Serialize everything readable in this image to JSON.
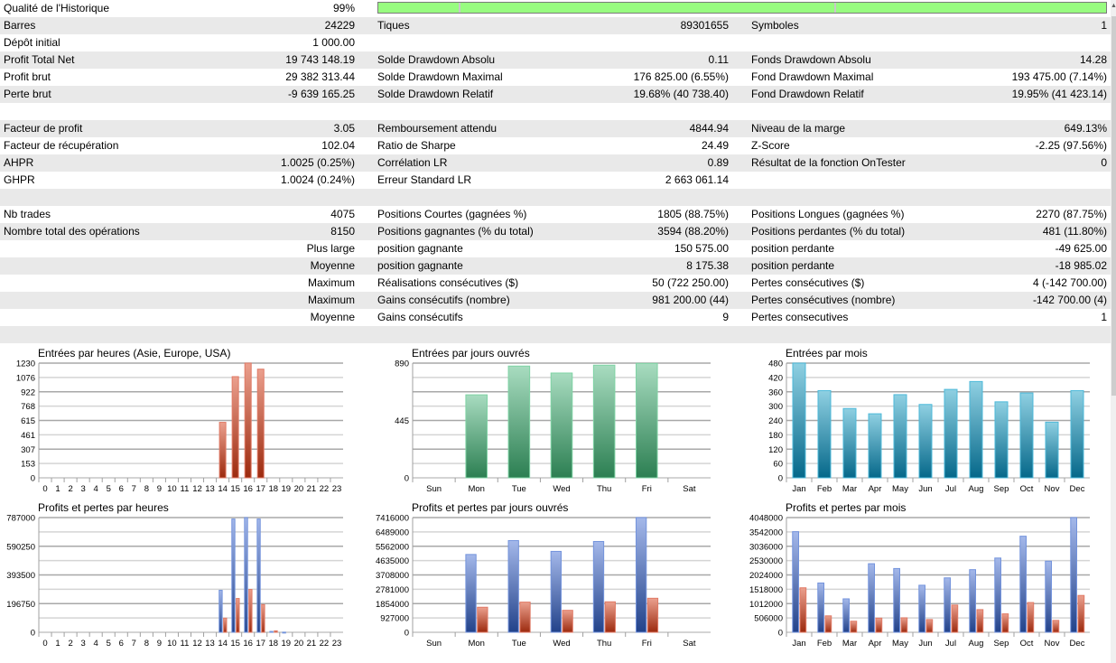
{
  "quality": {
    "label": "Qualité de l'Historique",
    "value": "99%",
    "percent": 99
  },
  "rows": [
    [
      "Barres",
      "24229",
      "Tiques",
      "89301655",
      "Symboles",
      "1"
    ],
    [
      "Dépôt initial",
      "1 000.00",
      "",
      "",
      "",
      ""
    ],
    [
      "Profit Total Net",
      "19 743 148.19",
      "Solde Drawdown Absolu",
      "0.11",
      "Fonds Drawdown Absolu",
      "14.28"
    ],
    [
      "Profit brut",
      "29 382 313.44",
      "Solde Drawdown Maximal",
      "176 825.00 (6.55%)",
      "Fond Drawdown Maximal",
      "193 475.00 (7.14%)"
    ],
    [
      "Perte brut",
      "-9 639 165.25",
      "Solde Drawdown Relatif",
      "19.68% (40 738.40)",
      "Fond Drawdown Relatif",
      "19.95% (41 423.14)"
    ],
    [
      "",
      "",
      "",
      "",
      "",
      ""
    ],
    [
      "Facteur de profit",
      "3.05",
      "Remboursement attendu",
      "4844.94",
      "Niveau de la marge",
      "649.13%"
    ],
    [
      "Facteur de récupération",
      "102.04",
      "Ratio de Sharpe",
      "24.49",
      "Z-Score",
      "-2.25 (97.56%)"
    ],
    [
      "AHPR",
      "1.0025 (0.25%)",
      "Corrélation LR",
      "0.89",
      "Résultat de la fonction OnTester",
      "0"
    ],
    [
      "GHPR",
      "1.0024 (0.24%)",
      "Erreur Standard LR",
      "2 663 061.14",
      "",
      ""
    ],
    [
      "",
      "",
      "",
      "",
      "",
      ""
    ],
    [
      "Nb trades",
      "4075",
      "Positions Courtes (gagnées %)",
      "1805 (88.75%)",
      "Positions Longues (gagnées %)",
      "2270 (87.75%)"
    ],
    [
      "Nombre total des opérations",
      "8150",
      "Positions gagnantes (% du total)",
      "3594 (88.20%)",
      "Positions perdantes (% du total)",
      "481 (11.80%)"
    ],
    [
      "",
      "Plus large",
      "position gagnante",
      "150 575.00",
      "position perdante",
      "-49 625.00"
    ],
    [
      "",
      "Moyenne",
      "position gagnante",
      "8 175.38",
      "position perdante",
      "-18 985.02"
    ],
    [
      "",
      "Maximum",
      "Réalisations consécutives ($)",
      "50 (722 250.00)",
      "Pertes consécutives ($)",
      "4 (-142 700.00)"
    ],
    [
      "",
      "Maximum",
      "Gains consécutifs (nombre)",
      "981 200.00 (44)",
      "Pertes consécutives (nombre)",
      "-142 700.00 (4)"
    ],
    [
      "",
      "Moyenne",
      "Gains consécutifs",
      "9",
      "Pertes consecutives",
      "1"
    ],
    [
      "",
      "",
      "",
      "",
      "",
      ""
    ]
  ],
  "colors": {
    "quality_bar": "#98fc80",
    "row_alt": "#e9e9e9"
  },
  "chart_data": [
    {
      "id": "entries-hours",
      "type": "bar",
      "title": "Entrées par heures (Asie, Europe, USA)",
      "categories": [
        "0",
        "1",
        "2",
        "3",
        "4",
        "5",
        "6",
        "7",
        "8",
        "9",
        "10",
        "11",
        "12",
        "13",
        "14",
        "15",
        "16",
        "17",
        "18",
        "19",
        "20",
        "21",
        "22",
        "23"
      ],
      "yticks": [
        "0",
        "153",
        "307",
        "461",
        "615",
        "768",
        "922",
        "1076",
        "1230"
      ],
      "ylim": [
        0,
        1230
      ],
      "series": [
        {
          "name": "Entrées",
          "color": "red",
          "values": [
            0,
            0,
            0,
            0,
            0,
            0,
            0,
            0,
            0,
            0,
            0,
            0,
            0,
            0,
            595,
            1085,
            1230,
            1165,
            0,
            0,
            0,
            0,
            0,
            0
          ]
        }
      ]
    },
    {
      "id": "entries-days",
      "type": "bar",
      "title": "Entrées par jours ouvrés",
      "categories": [
        "Sun",
        "Mon",
        "Tue",
        "Wed",
        "Thu",
        "Fri",
        "Sat"
      ],
      "yticks": [
        "0",
        "445",
        "890"
      ],
      "ylim": [
        0,
        890
      ],
      "series": [
        {
          "name": "Entrées",
          "color": "green",
          "values": [
            0,
            644,
            867,
            813,
            874,
            888,
            0
          ]
        }
      ]
    },
    {
      "id": "entries-months",
      "type": "bar",
      "title": "Entrées par mois",
      "categories": [
        "Jan",
        "Feb",
        "Mar",
        "Apr",
        "May",
        "Jun",
        "Jul",
        "Aug",
        "Sep",
        "Oct",
        "Nov",
        "Dec"
      ],
      "yticks": [
        "0",
        "60",
        "120",
        "180",
        "240",
        "300",
        "360",
        "420",
        "480"
      ],
      "ylim": [
        0,
        480
      ],
      "series": [
        {
          "name": "Entrées",
          "color": "teal",
          "values": [
            480,
            365,
            290,
            268,
            348,
            307,
            370,
            403,
            318,
            355,
            233,
            365
          ]
        }
      ]
    },
    {
      "id": "pl-hours",
      "type": "bar",
      "title": "Profits et pertes par heures",
      "categories": [
        "0",
        "1",
        "2",
        "3",
        "4",
        "5",
        "6",
        "7",
        "8",
        "9",
        "10",
        "11",
        "12",
        "13",
        "14",
        "15",
        "16",
        "17",
        "18",
        "19",
        "20",
        "21",
        "22",
        "23"
      ],
      "yticks": [
        "0",
        "196750",
        "393500",
        "590250",
        "787000"
      ],
      "ylim": [
        0,
        787000
      ],
      "series": [
        {
          "name": "Profits",
          "color": "blue",
          "values": [
            0,
            0,
            0,
            0,
            0,
            0,
            0,
            0,
            0,
            0,
            0,
            0,
            0,
            0,
            288000,
            777000,
            787000,
            777000,
            6000,
            1000,
            0,
            0,
            0,
            0
          ]
        },
        {
          "name": "Pertes",
          "color": "red",
          "values": [
            0,
            0,
            0,
            0,
            0,
            0,
            0,
            0,
            0,
            0,
            0,
            0,
            0,
            0,
            97000,
            232000,
            294000,
            190000,
            10000,
            0,
            0,
            0,
            0,
            0
          ]
        }
      ]
    },
    {
      "id": "pl-days",
      "type": "bar",
      "title": "Profits et pertes par jours ouvrés",
      "categories": [
        "Sun",
        "Mon",
        "Tue",
        "Wed",
        "Thu",
        "Fri",
        "Sat"
      ],
      "yticks": [
        "0",
        "927000",
        "1854000",
        "2781000",
        "3708000",
        "4635000",
        "5562000",
        "6489000",
        "7416000"
      ],
      "ylim": [
        0,
        7416000
      ],
      "series": [
        {
          "name": "Profits",
          "color": "blue",
          "values": [
            0,
            5030000,
            5930000,
            5230000,
            5870000,
            7416000,
            0
          ]
        },
        {
          "name": "Pertes",
          "color": "red",
          "values": [
            0,
            1620000,
            1950000,
            1420000,
            1970000,
            2200000,
            0
          ]
        }
      ]
    },
    {
      "id": "pl-months",
      "type": "bar",
      "title": "Profits et pertes par mois",
      "categories": [
        "Jan",
        "Feb",
        "Mar",
        "Apr",
        "May",
        "Jun",
        "Jul",
        "Aug",
        "Sep",
        "Oct",
        "Nov",
        "Dec"
      ],
      "yticks": [
        "0",
        "506000",
        "1012000",
        "1518000",
        "2024000",
        "2530000",
        "3036000",
        "3542000",
        "4048000"
      ],
      "ylim": [
        0,
        4048000
      ],
      "series": [
        {
          "name": "Profits",
          "color": "blue",
          "values": [
            3550000,
            1740000,
            1180000,
            2420000,
            2250000,
            1660000,
            1920000,
            2210000,
            2620000,
            3390000,
            2510000,
            4048000
          ]
        },
        {
          "name": "Pertes",
          "color": "red",
          "values": [
            1570000,
            580000,
            390000,
            500000,
            510000,
            450000,
            960000,
            800000,
            650000,
            1050000,
            420000,
            1300000
          ]
        }
      ]
    }
  ]
}
